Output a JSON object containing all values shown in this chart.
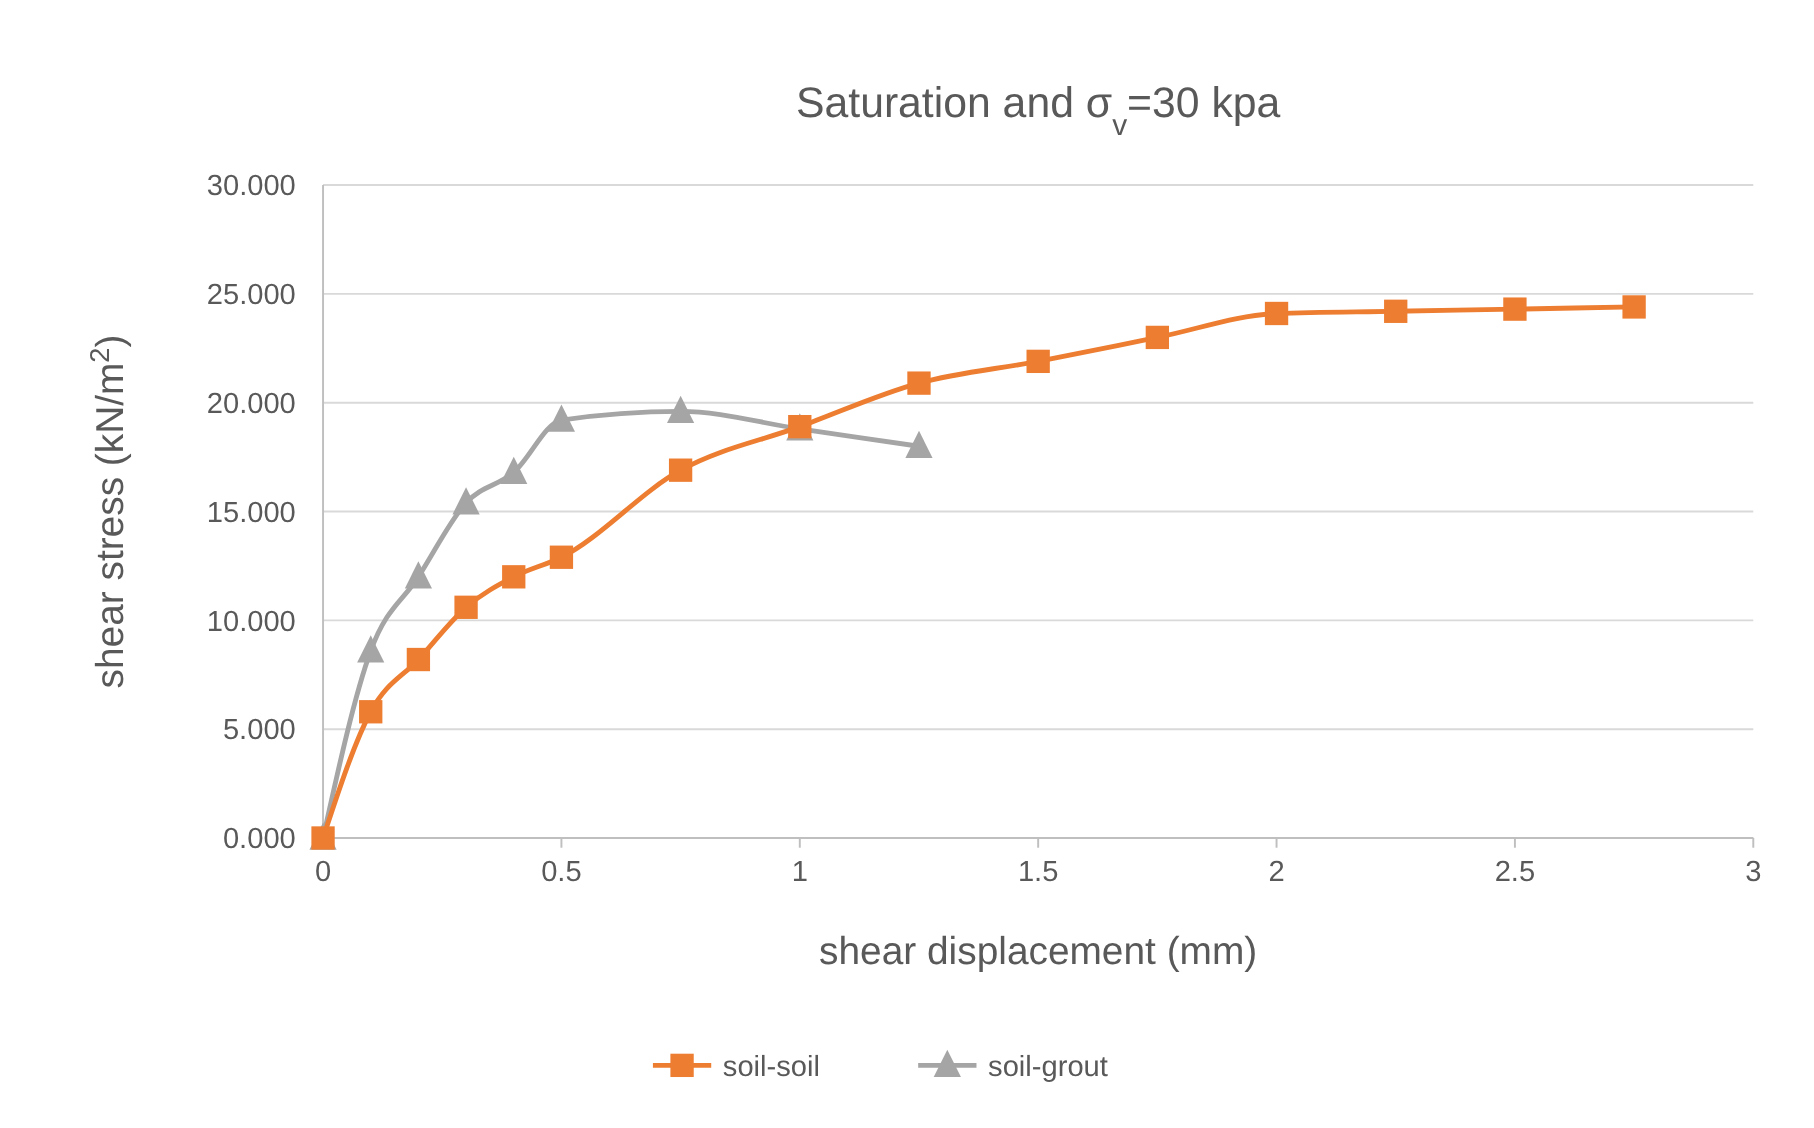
{
  "chart_data": {
    "type": "line",
    "title": "Saturation and σ$_{v}$=30 kpa",
    "xlabel": "shear displacement (mm)",
    "ylabel": "shear stress (kN/m$^{2}$)",
    "xlim": [
      0,
      3
    ],
    "xticks": [
      0,
      0.5,
      1,
      1.5,
      2,
      2.5,
      3
    ],
    "ylim": [
      0,
      30
    ],
    "yticks": [
      {
        "value": 0,
        "label": "0.000"
      },
      {
        "value": 5,
        "label": "5.000"
      },
      {
        "value": 10,
        "label": "10.000"
      },
      {
        "value": 15,
        "label": "15.000"
      },
      {
        "value": 20,
        "label": "20.000"
      },
      {
        "value": 25,
        "label": "25.000"
      },
      {
        "value": 30,
        "label": "30.000"
      }
    ],
    "grid": "y",
    "legend": "bottom",
    "series": [
      {
        "name": "soil-soil",
        "color": "#ed7d31",
        "marker": "square",
        "x": [
          0,
          0.1,
          0.2,
          0.3,
          0.4,
          0.5,
          0.75,
          1,
          1.25,
          1.5,
          1.75,
          2,
          2.25,
          2.5,
          2.75
        ],
        "values": [
          0,
          5.8,
          8.2,
          10.6,
          12.0,
          12.9,
          16.9,
          18.9,
          20.9,
          21.9,
          23.0,
          24.1,
          24.2,
          24.3,
          24.4
        ]
      },
      {
        "name": "soil-grout",
        "color": "#a5a5a5",
        "marker": "triangle",
        "x": [
          0,
          0.1,
          0.2,
          0.3,
          0.4,
          0.5,
          0.75,
          1,
          1.25
        ],
        "values": [
          0,
          8.6,
          12.0,
          15.4,
          16.8,
          19.2,
          19.6,
          18.8,
          18.0
        ]
      }
    ]
  }
}
